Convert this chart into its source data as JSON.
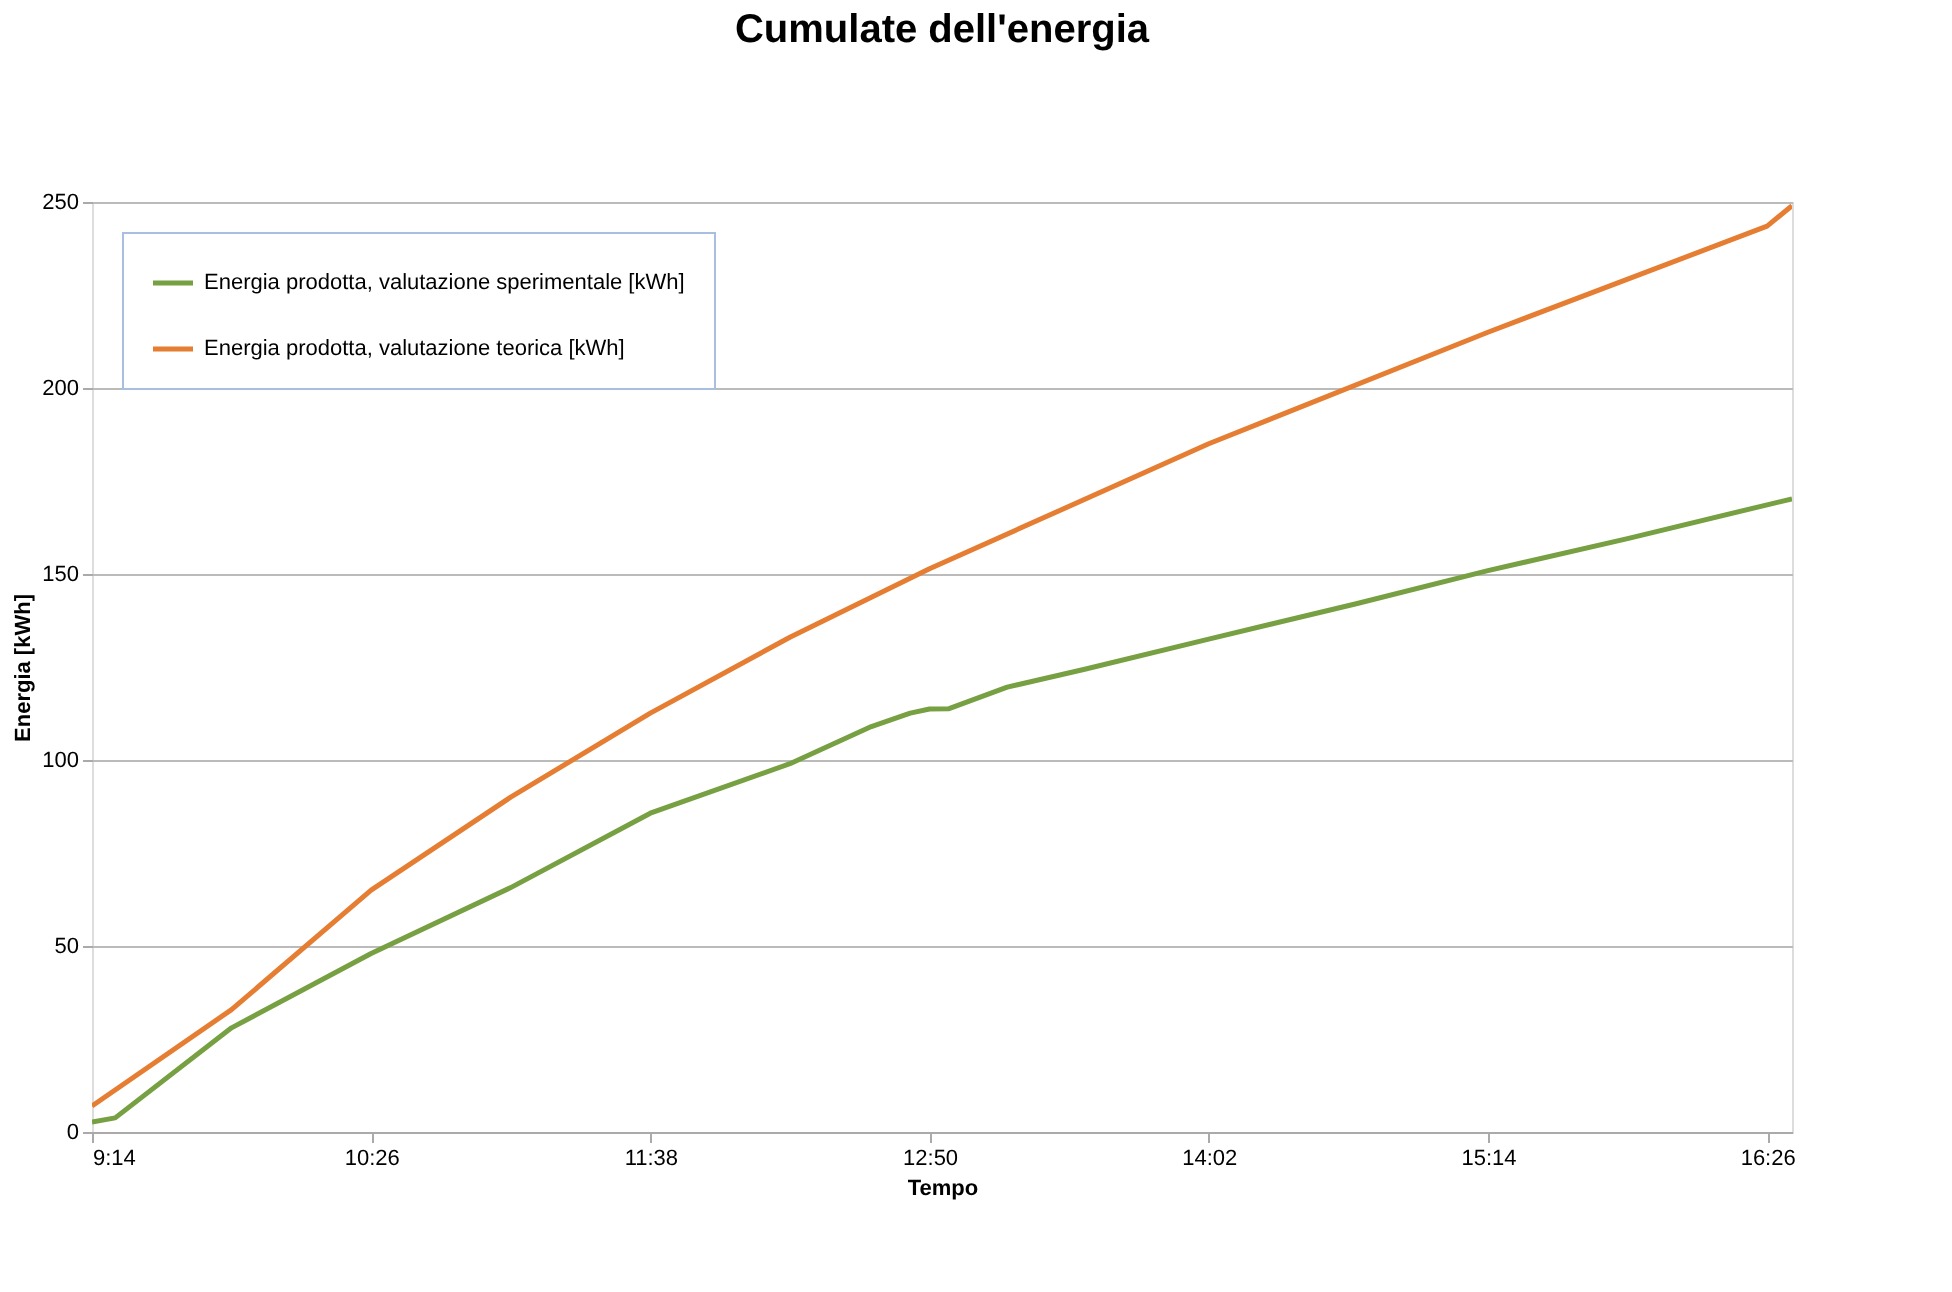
{
  "chart_data": {
    "type": "line",
    "title": "Cumulate dell'energia",
    "xlabel": "Tempo",
    "ylabel": "Energia [kWh]",
    "xlim": [
      9.2333,
      16.54
    ],
    "xticks": [
      {
        "value": 9.2333,
        "label": "9:14"
      },
      {
        "value": 10.4333,
        "label": "10:26"
      },
      {
        "value": 11.6333,
        "label": "11:38"
      },
      {
        "value": 12.8333,
        "label": "12:50"
      },
      {
        "value": 14.0333,
        "label": "14:02"
      },
      {
        "value": 15.2333,
        "label": "15:14"
      },
      {
        "value": 16.4333,
        "label": "16:26"
      }
    ],
    "ylim": [
      0,
      250
    ],
    "yticks": [
      0,
      50,
      100,
      150,
      200,
      250
    ],
    "grid": "y",
    "legend": "top left",
    "marker": "none",
    "line_style": "solid",
    "series": [
      {
        "name": "Energia prodotta, valutazione sperimentale [kWh]",
        "color": "#77a043",
        "x": [
          9.2333,
          9.333,
          9.833,
          10.433,
          11.033,
          11.633,
          12.233,
          12.583,
          12.75,
          12.833,
          12.917,
          13.167,
          13.5,
          14.033,
          14.667,
          15.233,
          15.833,
          16.433,
          16.54
        ],
        "values": [
          2.7,
          3.8,
          28,
          48,
          65.7,
          85.7,
          99,
          109,
          112.6,
          113.7,
          113.8,
          119.6,
          124.4,
          132.5,
          142,
          150.9,
          159.5,
          168.6,
          170.2
        ]
      },
      {
        "name": "Energia prodotta, valutazione teorica [kWh]",
        "color": "#e57e32",
        "x": [
          9.2333,
          9.833,
          10.433,
          11.033,
          11.633,
          12.233,
          12.833,
          14.033,
          15.233,
          16.433,
          16.54
        ],
        "values": [
          7,
          32.9,
          65,
          90,
          112.6,
          133,
          151.4,
          185,
          215,
          243.5,
          249
        ]
      }
    ]
  }
}
